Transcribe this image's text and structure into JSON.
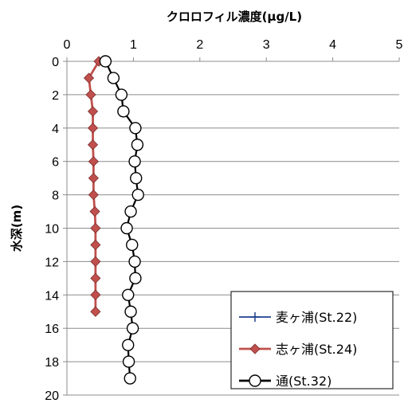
{
  "chart_data": {
    "type": "line",
    "title": "クロロフィル濃度(μg/L)",
    "xlabel": "クロロフィル濃度(μg/L)",
    "ylabel": "水深(m)",
    "xlim": [
      0,
      5
    ],
    "ylim": [
      0,
      20
    ],
    "y_inverted": true,
    "x_axis_position": "top",
    "x_ticks": [
      "0",
      "1",
      "2",
      "3",
      "4",
      "5"
    ],
    "y_ticks": [
      "0",
      "2",
      "4",
      "6",
      "8",
      "10",
      "12",
      "14",
      "16",
      "18",
      "20"
    ],
    "grid": "horizontal",
    "legend_position": "bottom-right",
    "series": [
      {
        "name": "麦ヶ浦(St.22)",
        "marker": "plus",
        "color": "#1F3F8F",
        "points": []
      },
      {
        "name": "志ヶ浦(St.24)",
        "marker": "diamond",
        "color": "#C0504D",
        "points": [
          {
            "x": 0.48,
            "y": 0
          },
          {
            "x": 0.33,
            "y": 1
          },
          {
            "x": 0.36,
            "y": 2
          },
          {
            "x": 0.39,
            "y": 3
          },
          {
            "x": 0.39,
            "y": 4
          },
          {
            "x": 0.39,
            "y": 5
          },
          {
            "x": 0.4,
            "y": 6
          },
          {
            "x": 0.4,
            "y": 7
          },
          {
            "x": 0.4,
            "y": 8
          },
          {
            "x": 0.42,
            "y": 9
          },
          {
            "x": 0.43,
            "y": 10
          },
          {
            "x": 0.43,
            "y": 11
          },
          {
            "x": 0.43,
            "y": 12
          },
          {
            "x": 0.43,
            "y": 13
          },
          {
            "x": 0.43,
            "y": 14
          },
          {
            "x": 0.43,
            "y": 15
          }
        ]
      },
      {
        "name": "通(St.32)",
        "marker": "circle",
        "color": "#000000",
        "points": [
          {
            "x": 0.58,
            "y": 0
          },
          {
            "x": 0.7,
            "y": 1
          },
          {
            "x": 0.82,
            "y": 2
          },
          {
            "x": 0.85,
            "y": 3
          },
          {
            "x": 1.03,
            "y": 4
          },
          {
            "x": 1.06,
            "y": 5
          },
          {
            "x": 1.02,
            "y": 6
          },
          {
            "x": 1.04,
            "y": 7
          },
          {
            "x": 1.07,
            "y": 8
          },
          {
            "x": 0.96,
            "y": 9
          },
          {
            "x": 0.9,
            "y": 10
          },
          {
            "x": 0.98,
            "y": 11
          },
          {
            "x": 1.02,
            "y": 12
          },
          {
            "x": 1.03,
            "y": 13
          },
          {
            "x": 0.92,
            "y": 14
          },
          {
            "x": 0.96,
            "y": 15
          },
          {
            "x": 0.99,
            "y": 16
          },
          {
            "x": 0.92,
            "y": 17
          },
          {
            "x": 0.93,
            "y": 18
          },
          {
            "x": 0.95,
            "y": 19
          }
        ]
      }
    ]
  }
}
